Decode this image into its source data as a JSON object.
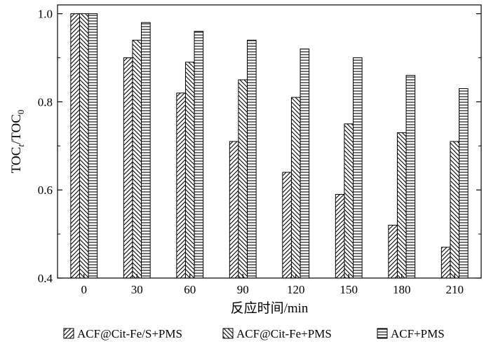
{
  "chart_data": {
    "type": "bar",
    "categories": [
      "0",
      "30",
      "60",
      "90",
      "120",
      "150",
      "180",
      "210"
    ],
    "series": [
      {
        "name": "ACF@Cit-Fe/S+PMS",
        "values": [
          1.0,
          0.9,
          0.82,
          0.71,
          0.64,
          0.59,
          0.52,
          0.47
        ],
        "pattern": "diag-up"
      },
      {
        "name": "ACF@Cit-Fe+PMS",
        "values": [
          1.0,
          0.94,
          0.89,
          0.85,
          0.81,
          0.75,
          0.73,
          0.71
        ],
        "pattern": "diag-down"
      },
      {
        "name": "ACF+PMS",
        "values": [
          1.0,
          0.98,
          0.96,
          0.94,
          0.92,
          0.9,
          0.86,
          0.83
        ],
        "pattern": "horizontal"
      }
    ],
    "xlabel": "反应时间/min",
    "ylabel": {
      "base": "TOC",
      "sub_t": "t",
      "sep": "/TOC",
      "sub_0": "0"
    },
    "ylim": [
      0.4,
      1.02
    ],
    "yticks": [
      "0.4",
      "0.6",
      "0.8",
      "1.0"
    ],
    "grid": false,
    "legend_position": "bottom"
  }
}
